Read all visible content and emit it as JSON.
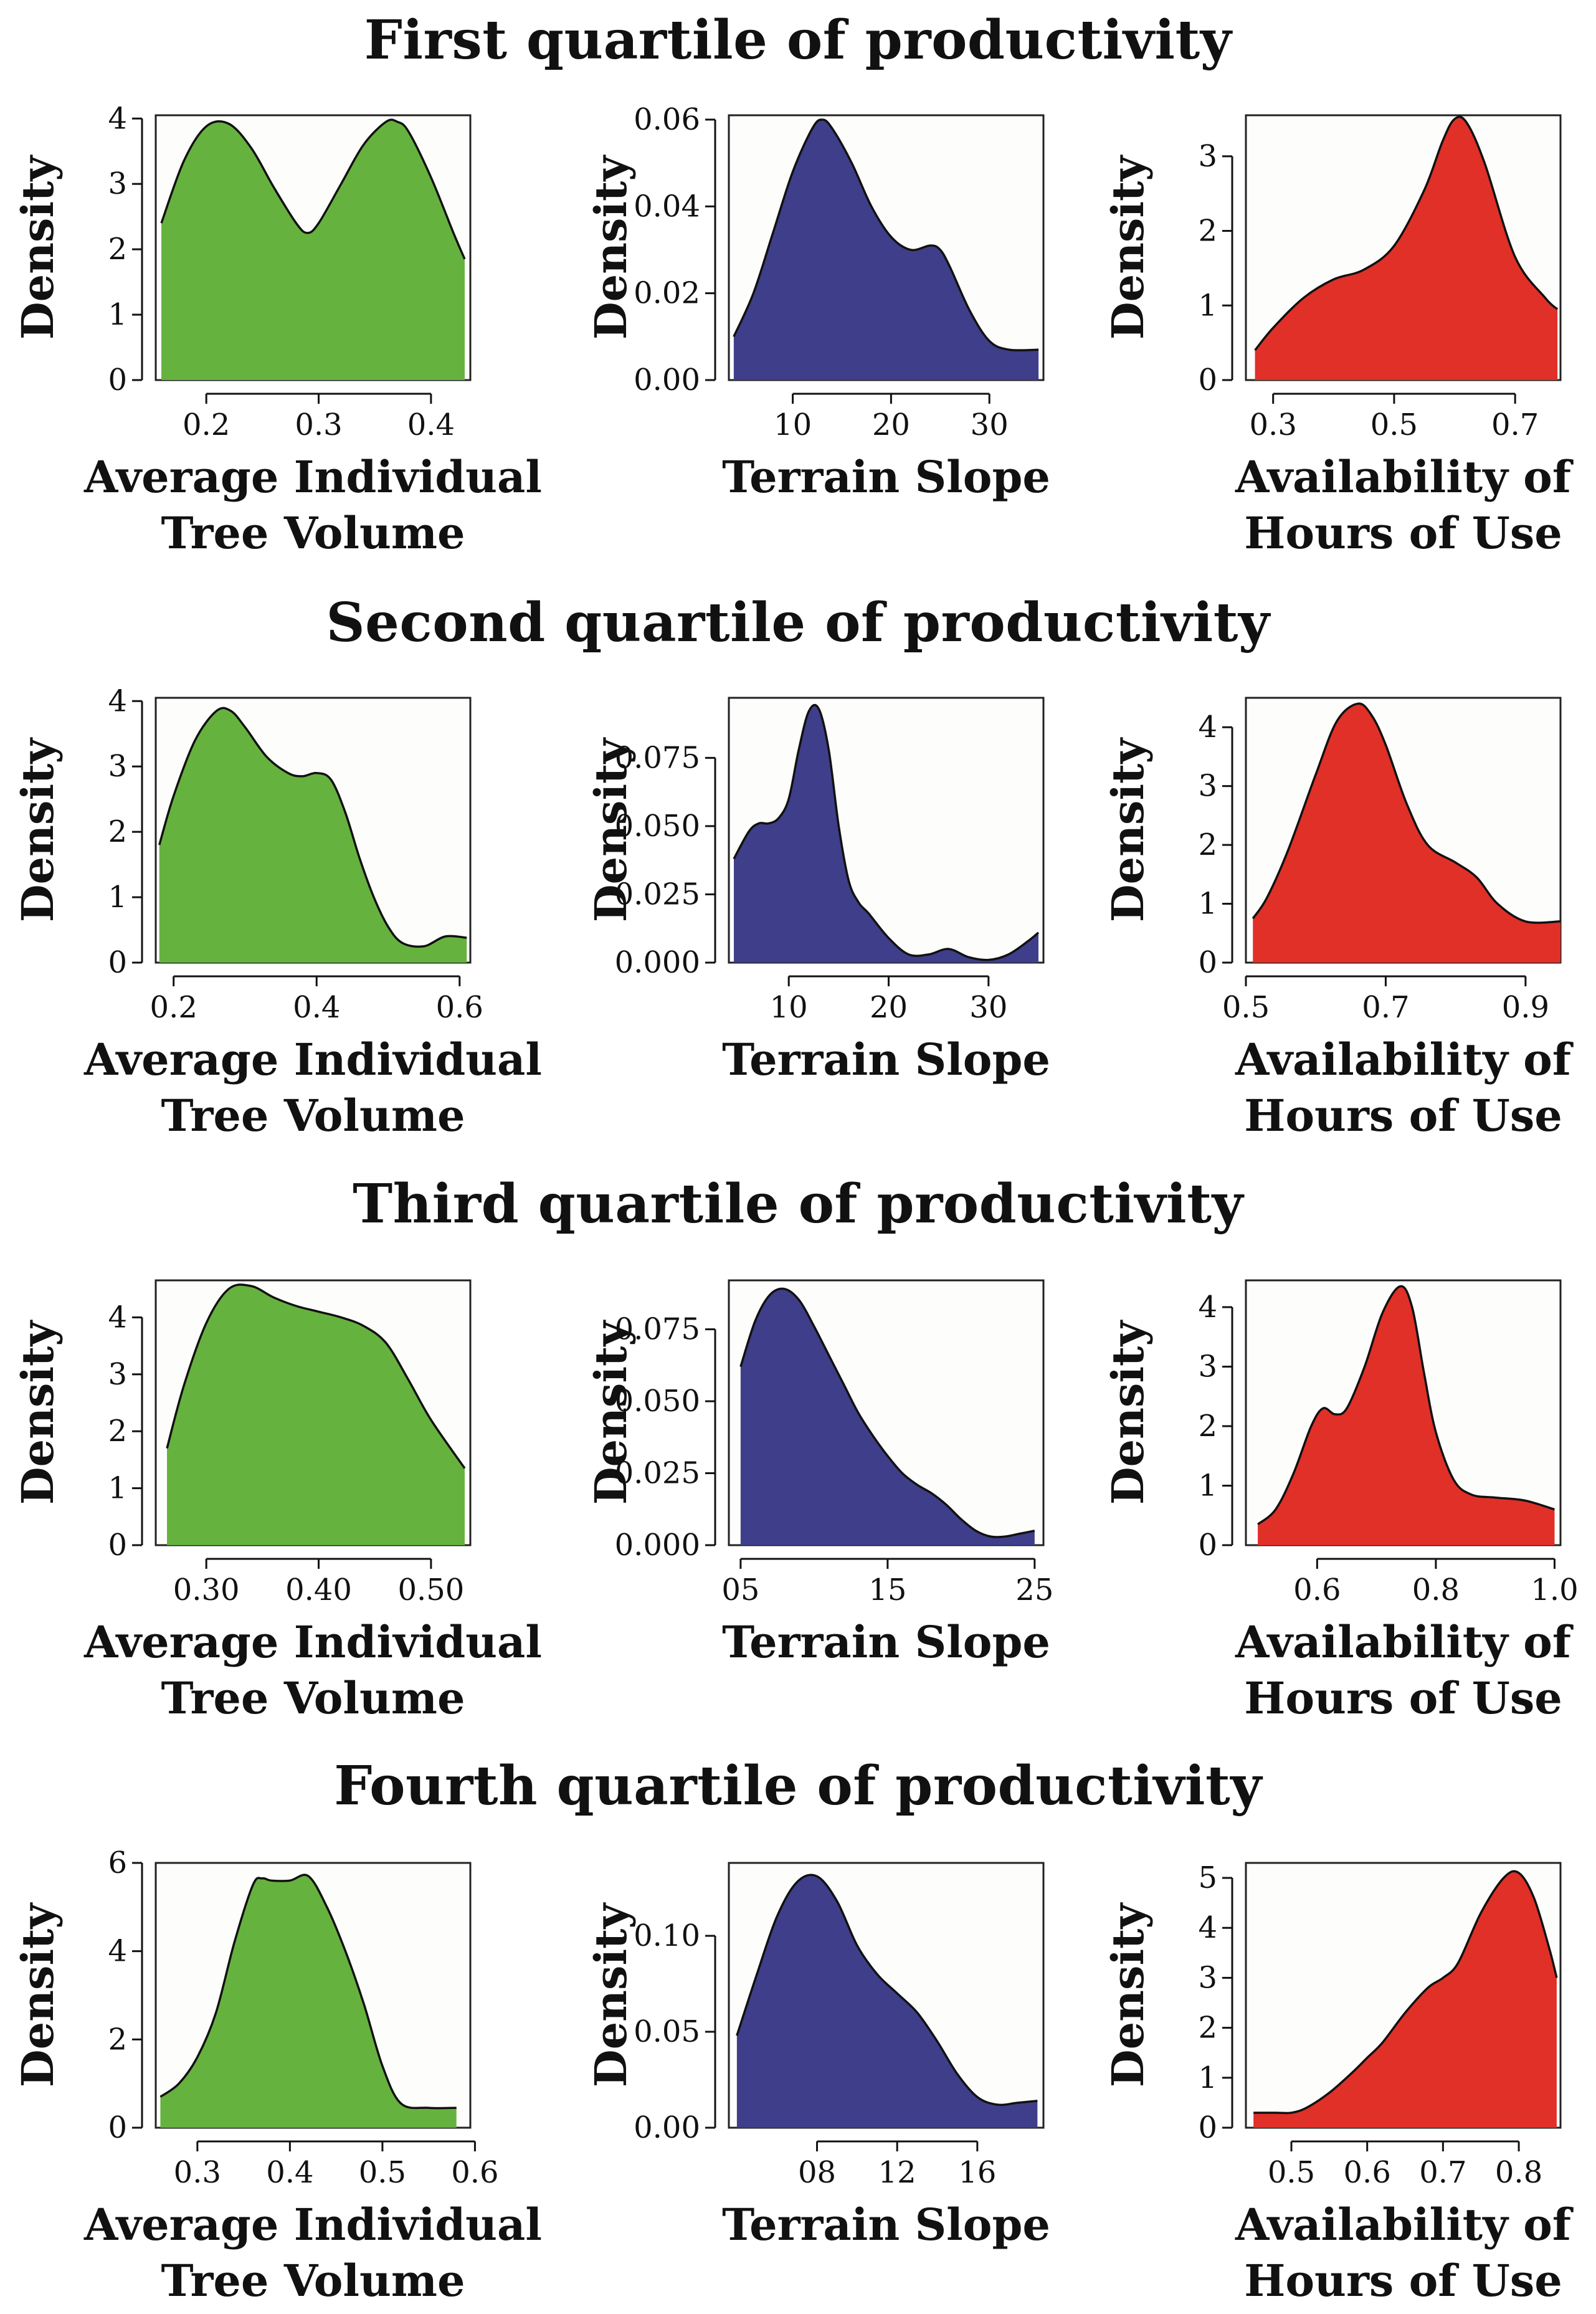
{
  "figure": {
    "rows": [
      {
        "title": "First quartile of productivity",
        "charts": [
          {
            "type": "area",
            "color": "#66b23e",
            "xlabel": [
              "Average Individual",
              "Tree Volume"
            ],
            "ylabel": "Density",
            "xlim": [
              0.155,
              0.435
            ],
            "ylim": [
              0,
              4.05
            ],
            "xticks": [
              0.2,
              0.3,
              0.4
            ],
            "xtick_labels": [
              "0.2",
              "0.3",
              "0.4"
            ],
            "yticks": [
              0,
              1,
              2,
              3,
              4
            ],
            "ytick_labels": [
              "0",
              "1",
              "2",
              "3",
              "4"
            ],
            "x": [
              0.16,
              0.18,
              0.2,
              0.22,
              0.24,
              0.26,
              0.28,
              0.29,
              0.3,
              0.32,
              0.34,
              0.36,
              0.37,
              0.38,
              0.4,
              0.42,
              0.43
            ],
            "y": [
              2.4,
              3.35,
              3.88,
              3.92,
              3.55,
              2.95,
              2.4,
              2.25,
              2.4,
              3.0,
              3.6,
              3.95,
              3.95,
              3.8,
              3.1,
              2.25,
              1.85
            ]
          },
          {
            "type": "area",
            "color": "#3e3e8a",
            "xlabel": [
              "Terrain Slope"
            ],
            "ylabel": "Density",
            "xlim": [
              3.5,
              35.5
            ],
            "ylim": [
              0,
              0.061
            ],
            "xticks": [
              10,
              20,
              30
            ],
            "xtick_labels": [
              "10",
              "20",
              "30"
            ],
            "yticks": [
              0,
              0.02,
              0.04,
              0.06
            ],
            "ytick_labels": [
              "0.00",
              "0.02",
              "0.04",
              "0.06"
            ],
            "x": [
              4,
              6,
              8,
              10,
              12,
              13,
              14,
              16,
              18,
              20,
              22,
              24,
              25,
              26,
              28,
              30,
              32,
              35
            ],
            "y": [
              0.01,
              0.02,
              0.034,
              0.048,
              0.058,
              0.06,
              0.058,
              0.05,
              0.04,
              0.033,
              0.03,
              0.031,
              0.03,
              0.026,
              0.016,
              0.009,
              0.007,
              0.007
            ]
          },
          {
            "type": "area",
            "color": "#e03028",
            "xlabel": [
              "Availability of",
              "Hours of Use"
            ],
            "ylabel": "Density",
            "xlim": [
              0.255,
              0.775
            ],
            "ylim": [
              0,
              3.55
            ],
            "xticks": [
              0.3,
              0.5,
              0.7
            ],
            "xtick_labels": [
              "0.3",
              "0.5",
              "0.7"
            ],
            "yticks": [
              0,
              1,
              2,
              3
            ],
            "ytick_labels": [
              "0",
              "1",
              "2",
              "3"
            ],
            "x": [
              0.27,
              0.3,
              0.35,
              0.4,
              0.45,
              0.5,
              0.55,
              0.58,
              0.6,
              0.62,
              0.65,
              0.7,
              0.75,
              0.77
            ],
            "y": [
              0.4,
              0.7,
              1.1,
              1.35,
              1.48,
              1.8,
              2.55,
              3.2,
              3.5,
              3.45,
              2.9,
              1.65,
              1.1,
              0.95
            ]
          }
        ]
      },
      {
        "title": "Second quartile of productivity",
        "charts": [
          {
            "type": "area",
            "color": "#66b23e",
            "xlabel": [
              "Average Individual",
              "Tree Volume"
            ],
            "ylabel": "Density",
            "xlim": [
              0.175,
              0.615
            ],
            "ylim": [
              0,
              4.05
            ],
            "xticks": [
              0.2,
              0.4,
              0.6
            ],
            "xtick_labels": [
              "0.2",
              "0.4",
              "0.6"
            ],
            "yticks": [
              0,
              1,
              2,
              3,
              4
            ],
            "ytick_labels": [
              "0",
              "1",
              "2",
              "3",
              "4"
            ],
            "x": [
              0.18,
              0.2,
              0.23,
              0.26,
              0.28,
              0.3,
              0.33,
              0.36,
              0.38,
              0.4,
              0.42,
              0.44,
              0.46,
              0.48,
              0.5,
              0.52,
              0.55,
              0.58,
              0.61
            ],
            "y": [
              1.8,
              2.55,
              3.4,
              3.85,
              3.85,
              3.6,
              3.15,
              2.9,
              2.85,
              2.9,
              2.8,
              2.3,
              1.6,
              1.0,
              0.55,
              0.3,
              0.25,
              0.4,
              0.38
            ]
          },
          {
            "type": "area",
            "color": "#3e3e8a",
            "xlabel": [
              "Terrain Slope"
            ],
            "ylabel": "Density",
            "xlim": [
              4,
              35.5
            ],
            "ylim": [
              0,
              0.097
            ],
            "xticks": [
              10,
              20,
              30
            ],
            "xtick_labels": [
              "10",
              "20",
              "30"
            ],
            "yticks": [
              0,
              0.025,
              0.05,
              0.075
            ],
            "ytick_labels": [
              "0.000",
              "0.025",
              "0.050",
              "0.075"
            ],
            "x": [
              4.5,
              6,
              7,
              8,
              9,
              10,
              11,
              12,
              13,
              14,
              15,
              16,
              17,
              18,
              20,
              22,
              24,
              26,
              28,
              30,
              32,
              34,
              35
            ],
            "y": [
              0.038,
              0.048,
              0.051,
              0.051,
              0.053,
              0.06,
              0.078,
              0.092,
              0.093,
              0.078,
              0.05,
              0.03,
              0.022,
              0.018,
              0.009,
              0.003,
              0.003,
              0.005,
              0.002,
              0.001,
              0.003,
              0.008,
              0.011
            ]
          },
          {
            "type": "area",
            "color": "#e03028",
            "xlabel": [
              "Availability of",
              "Hours of Use"
            ],
            "ylabel": "Density",
            "xlim": [
              0.5,
              0.95
            ],
            "ylim": [
              0,
              4.5
            ],
            "xticks": [
              0.5,
              0.7,
              0.9
            ],
            "xtick_labels": [
              "0.5",
              "0.7",
              "0.9"
            ],
            "yticks": [
              0,
              1,
              2,
              3,
              4
            ],
            "ytick_labels": [
              "0",
              "1",
              "2",
              "3",
              "4"
            ],
            "x": [
              0.51,
              0.53,
              0.56,
              0.6,
              0.63,
              0.66,
              0.68,
              0.7,
              0.73,
              0.76,
              0.8,
              0.83,
              0.86,
              0.9,
              0.95
            ],
            "y": [
              0.75,
              1.1,
              1.9,
              3.2,
              4.1,
              4.4,
              4.2,
              3.7,
              2.7,
              2.0,
              1.7,
              1.45,
              1.0,
              0.7,
              0.7
            ]
          }
        ]
      },
      {
        "title": "Third quartile of productivity",
        "charts": [
          {
            "type": "area",
            "color": "#66b23e",
            "xlabel": [
              "Average Individual",
              "Tree Volume"
            ],
            "ylabel": "Density",
            "xlim": [
              0.255,
              0.535
            ],
            "ylim": [
              0,
              4.65
            ],
            "xticks": [
              0.3,
              0.4,
              0.5
            ],
            "xtick_labels": [
              "0.30",
              "0.40",
              "0.50"
            ],
            "yticks": [
              0,
              1,
              2,
              3,
              4
            ],
            "ytick_labels": [
              "0",
              "1",
              "2",
              "3",
              "4"
            ],
            "x": [
              0.265,
              0.28,
              0.3,
              0.32,
              0.34,
              0.36,
              0.38,
              0.4,
              0.42,
              0.44,
              0.46,
              0.48,
              0.5,
              0.53
            ],
            "y": [
              1.7,
              2.8,
              3.9,
              4.5,
              4.55,
              4.35,
              4.2,
              4.1,
              4.0,
              3.85,
              3.55,
              2.9,
              2.2,
              1.35
            ]
          },
          {
            "type": "area",
            "color": "#3e3e8a",
            "xlabel": [
              "Terrain Slope"
            ],
            "ylabel": "Density",
            "xlim": [
              4.2,
              25.6
            ],
            "ylim": [
              0,
              0.092
            ],
            "xticks": [
              5,
              15,
              25
            ],
            "xtick_labels": [
              "05",
              "15",
              "25"
            ],
            "yticks": [
              0,
              0.025,
              0.05,
              0.075
            ],
            "ytick_labels": [
              "0.000",
              "0.025",
              "0.050",
              "0.075"
            ],
            "x": [
              5,
              6,
              7,
              8,
              9,
              10,
              11,
              12,
              13,
              14,
              15,
              16,
              17,
              18,
              19,
              20,
              21,
              22,
              23,
              24,
              25
            ],
            "y": [
              0.062,
              0.078,
              0.087,
              0.089,
              0.085,
              0.076,
              0.066,
              0.056,
              0.046,
              0.038,
              0.031,
              0.025,
              0.021,
              0.018,
              0.014,
              0.009,
              0.005,
              0.003,
              0.003,
              0.004,
              0.005
            ]
          },
          {
            "type": "area",
            "color": "#e03028",
            "xlabel": [
              "Availability of",
              "Hours of Use"
            ],
            "ylabel": "Density",
            "xlim": [
              0.48,
              1.01
            ],
            "ylim": [
              0,
              4.45
            ],
            "xticks": [
              0.6,
              0.8,
              1.0
            ],
            "xtick_labels": [
              "0.6",
              "0.8",
              "1.0"
            ],
            "yticks": [
              0,
              1,
              2,
              3,
              4
            ],
            "ytick_labels": [
              "0",
              "1",
              "2",
              "3",
              "4"
            ],
            "x": [
              0.5,
              0.53,
              0.56,
              0.59,
              0.61,
              0.63,
              0.65,
              0.68,
              0.71,
              0.74,
              0.76,
              0.78,
              0.8,
              0.83,
              0.86,
              0.9,
              0.95,
              1.0
            ],
            "y": [
              0.35,
              0.6,
              1.2,
              2.0,
              2.3,
              2.2,
              2.3,
              3.0,
              3.9,
              4.35,
              4.0,
              2.9,
              1.9,
              1.1,
              0.85,
              0.8,
              0.75,
              0.6
            ]
          }
        ]
      },
      {
        "title": "Fourth quartile of productivity",
        "charts": [
          {
            "type": "area",
            "color": "#66b23e",
            "xlabel": [
              "Average Individual",
              "Tree Volume"
            ],
            "ylabel": "Density",
            "xlim": [
              0.255,
              0.595
            ],
            "ylim": [
              0,
              6.0
            ],
            "xticks": [
              0.3,
              0.4,
              0.5,
              0.6
            ],
            "xtick_labels": [
              "0.3",
              "0.4",
              "0.5",
              "0.6"
            ],
            "yticks": [
              0,
              2,
              4,
              6
            ],
            "ytick_labels": [
              "0",
              "2",
              "4",
              "6"
            ],
            "x": [
              0.26,
              0.28,
              0.3,
              0.32,
              0.34,
              0.36,
              0.37,
              0.38,
              0.4,
              0.42,
              0.44,
              0.46,
              0.48,
              0.5,
              0.52,
              0.55,
              0.58
            ],
            "y": [
              0.7,
              1.0,
              1.6,
              2.6,
              4.2,
              5.5,
              5.65,
              5.6,
              5.6,
              5.7,
              5.0,
              4.0,
              2.8,
              1.4,
              0.55,
              0.45,
              0.45
            ]
          },
          {
            "type": "area",
            "color": "#3e3e8a",
            "xlabel": [
              "Terrain Slope"
            ],
            "ylabel": "Density",
            "xlim": [
              3.6,
              19.3
            ],
            "ylim": [
              0,
              0.138
            ],
            "xticks": [
              8,
              12,
              16
            ],
            "xtick_labels": [
              "08",
              "12",
              "16"
            ],
            "yticks": [
              0,
              0.05,
              0.1
            ],
            "ytick_labels": [
              "0.00",
              "0.05",
              "0.10"
            ],
            "x": [
              4,
              5,
              6,
              7,
              8,
              9,
              10,
              11,
              12,
              13,
              14,
              15,
              16,
              17,
              18,
              19
            ],
            "y": [
              0.048,
              0.08,
              0.11,
              0.128,
              0.131,
              0.118,
              0.095,
              0.08,
              0.07,
              0.06,
              0.045,
              0.028,
              0.016,
              0.012,
              0.013,
              0.014
            ]
          },
          {
            "type": "area",
            "color": "#e03028",
            "xlabel": [
              "Availability of",
              "Hours of Use"
            ],
            "ylabel": "Density",
            "xlim": [
              0.44,
              0.855
            ],
            "ylim": [
              0,
              5.3
            ],
            "xticks": [
              0.5,
              0.6,
              0.7,
              0.8
            ],
            "xtick_labels": [
              "0.5",
              "0.6",
              "0.7",
              "0.8"
            ],
            "yticks": [
              0,
              1,
              2,
              3,
              4,
              5
            ],
            "ytick_labels": [
              "0",
              "1",
              "2",
              "3",
              "4",
              "5"
            ],
            "x": [
              0.45,
              0.48,
              0.5,
              0.52,
              0.55,
              0.58,
              0.6,
              0.62,
              0.65,
              0.68,
              0.7,
              0.72,
              0.75,
              0.78,
              0.8,
              0.82,
              0.84,
              0.85
            ],
            "y": [
              0.3,
              0.3,
              0.3,
              0.4,
              0.7,
              1.1,
              1.4,
              1.7,
              2.3,
              2.8,
              3.0,
              3.3,
              4.3,
              5.0,
              5.1,
              4.6,
              3.6,
              3.0
            ]
          }
        ]
      }
    ]
  }
}
